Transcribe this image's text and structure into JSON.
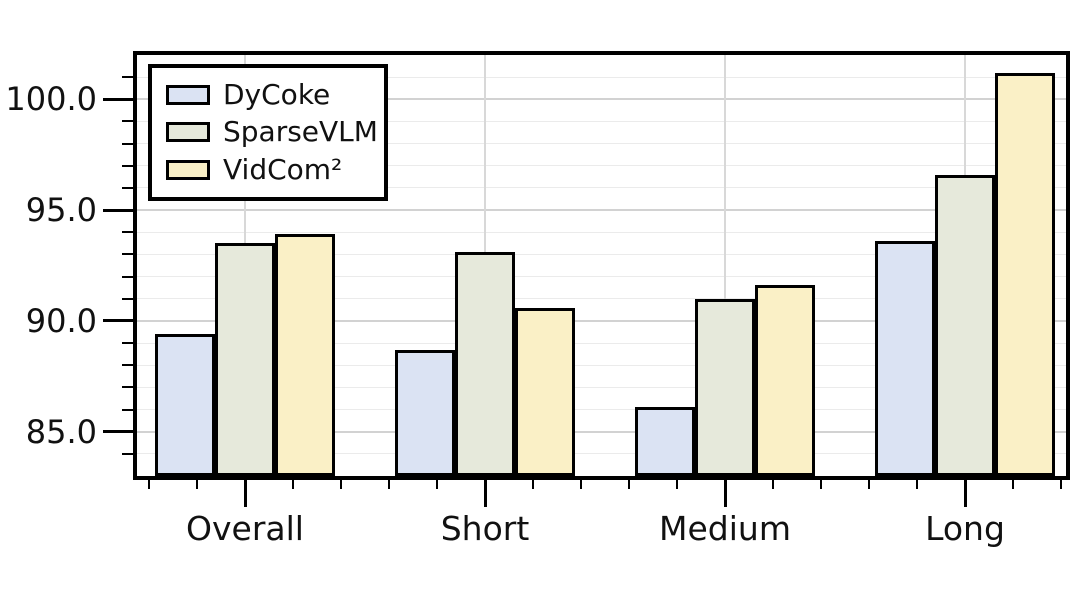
{
  "chart_data": {
    "type": "bar",
    "categories": [
      "Overall",
      "Short",
      "Medium",
      "Long"
    ],
    "series": [
      {
        "name": "DyCoke",
        "color": "#dbe3f3",
        "values": [
          89.4,
          88.7,
          86.1,
          93.6
        ]
      },
      {
        "name": "SparseVLM",
        "color": "#e6e9db",
        "values": [
          93.5,
          93.1,
          91.0,
          96.6
        ]
      },
      {
        "name": "VidCom²",
        "color": "#faf0c6",
        "values": [
          93.9,
          90.6,
          91.6,
          101.2
        ]
      }
    ],
    "title": "",
    "xlabel": "",
    "ylabel": "",
    "ylim": [
      83,
      102
    ],
    "yticks": [
      85,
      90,
      95,
      100
    ],
    "ytick_labels": [
      "85.0",
      "90.0",
      "95.0",
      "100.0"
    ],
    "y_minor_step": 1,
    "grid": "horizontal major+minor, vertical at category centers",
    "legend_position": "upper left",
    "colors": {
      "bar_edge": "#000000",
      "spine": "#000000",
      "grid_major": "#d2d2d2",
      "grid_minor": "#ebebeb",
      "text": "#111111",
      "background": "#ffffff"
    }
  }
}
